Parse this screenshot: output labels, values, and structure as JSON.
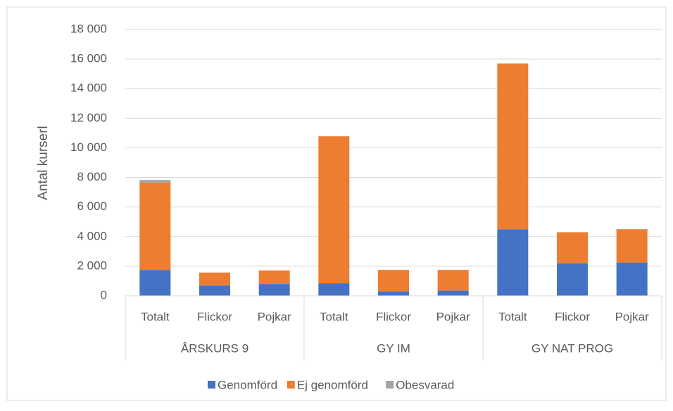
{
  "chart_data": {
    "type": "stacked_bar",
    "y_axis_label": "Antal kurserl",
    "categories": [
      "Totalt",
      "Flickor",
      "Pojkar",
      "Totalt",
      "Flickor",
      "Pojkar",
      "Totalt",
      "Flickor",
      "Pojkar"
    ],
    "groups": [
      "ÅRSKURS 9",
      "GY IM",
      "GY NAT PROG"
    ],
    "series": [
      {
        "name": "Genomförd",
        "color": "#4472c4",
        "values": [
          1750,
          700,
          800,
          850,
          300,
          350,
          4500,
          2200,
          2250
        ]
      },
      {
        "name": "Ej genomförd",
        "color": "#ed7d31",
        "values": [
          5900,
          870,
          910,
          9930,
          1450,
          1400,
          11200,
          2100,
          2250
        ]
      },
      {
        "name": "Obesvarad",
        "color": "#a5a5a5",
        "values": [
          180,
          0,
          0,
          0,
          0,
          0,
          0,
          0,
          0
        ]
      }
    ],
    "ylim": [
      0,
      18000
    ],
    "yticks": [
      0,
      {
        "value": 2000,
        "label": "2 000"
      },
      {
        "value": 4000,
        "label": "4 000"
      },
      {
        "value": 6000,
        "label": "6 000"
      },
      {
        "value": 8000,
        "label": "8 000"
      },
      {
        "value": 10000,
        "label": "10 000"
      },
      {
        "value": 12000,
        "label": "12 000"
      },
      {
        "value": 14000,
        "label": "14 000"
      },
      {
        "value": 16000,
        "label": "16 000"
      },
      {
        "value": 18000,
        "label": "18 000"
      }
    ],
    "grid": true,
    "legend": "bottom"
  }
}
